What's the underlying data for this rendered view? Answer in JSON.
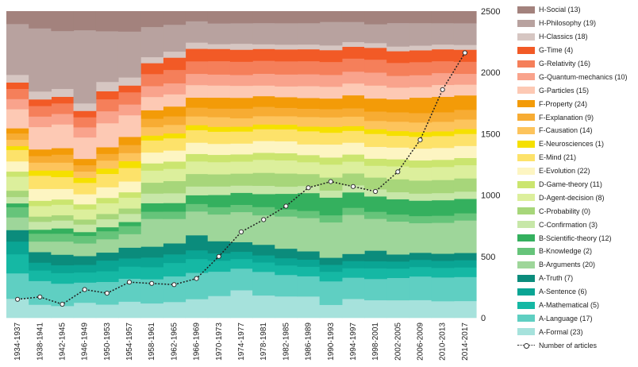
{
  "chart_data": {
    "type": "area",
    "stacked": true,
    "stacking": "proportional (stacked bands fill to the 2500 line)",
    "x": [
      "1934-1937",
      "1938-1941",
      "1942-1945",
      "1946-1949",
      "1950-1953",
      "1954-1957",
      "1958-1961",
      "1962-1965",
      "1966-1969",
      "1970-1973",
      "1974-1977",
      "1978-1981",
      "1982-1985",
      "1986-1989",
      "1990-1993",
      "1994-1997",
      "1998-2001",
      "2002-2005",
      "2006-2009",
      "2010-2013",
      "2014-2017"
    ],
    "y_axis_position": "right",
    "ylim": [
      0,
      2500
    ],
    "yticks": [
      0,
      500,
      1000,
      1500,
      2000,
      2500
    ],
    "grid": false,
    "legend_position": "right",
    "series": [
      {
        "name": "A-Formal (23)",
        "color": "#a6e2dc",
        "values": [
          150,
          100,
          90,
          120,
          100,
          120,
          120,
          130,
          150,
          180,
          230,
          190,
          180,
          180,
          110,
          160,
          150,
          150,
          150,
          140,
          140
        ]
      },
      {
        "name": "A-Language (17)",
        "color": "#5fcfc2",
        "values": [
          200,
          180,
          170,
          160,
          170,
          170,
          200,
          210,
          210,
          200,
          180,
          200,
          180,
          170,
          200,
          180,
          180,
          190,
          200,
          200,
          200
        ]
      },
      {
        "name": "A-Mathematical (5)",
        "color": "#15b8a4",
        "values": [
          150,
          80,
          80,
          80,
          80,
          90,
          100,
          110,
          110,
          90,
          80,
          80,
          80,
          80,
          80,
          80,
          90,
          80,
          80,
          80,
          80
        ]
      },
      {
        "name": "A-Sentence (6)",
        "color": "#0aa594",
        "values": [
          100,
          60,
          60,
          60,
          80,
          60,
          80,
          70,
          70,
          60,
          60,
          60,
          60,
          60,
          60,
          60,
          60,
          60,
          60,
          60,
          60
        ]
      },
      {
        "name": "A-Truth (7)",
        "color": "#0b8c7c",
        "values": [
          90,
          80,
          80,
          70,
          60,
          80,
          90,
          90,
          120,
          100,
          80,
          90,
          80,
          70,
          60,
          60,
          90,
          60,
          60,
          60,
          60
        ]
      },
      {
        "name": "B-Arguments (20)",
        "color": "#9ed69a",
        "values": [
          100,
          80,
          100,
          100,
          100,
          100,
          230,
          200,
          190,
          220,
          250,
          250,
          270,
          280,
          300,
          330,
          270,
          280,
          250,
          260,
          270
        ]
      },
      {
        "name": "B-Knowledge (2)",
        "color": "#66c47a",
        "values": [
          80,
          60,
          60,
          60,
          60,
          60,
          60,
          60,
          60,
          60,
          60,
          70,
          60,
          60,
          60,
          60,
          60,
          60,
          60,
          60,
          60
        ]
      },
      {
        "name": "B-Scientific-theory (12)",
        "color": "#34b05e",
        "values": [
          30,
          30,
          40,
          30,
          30,
          30,
          70,
          70,
          70,
          100,
          100,
          110,
          130,
          150,
          150,
          130,
          130,
          130,
          130,
          130,
          120
        ]
      },
      {
        "name": "C-Confirmation (3)",
        "color": "#c7e7a8",
        "values": [
          50,
          60,
          60,
          60,
          60,
          60,
          80,
          80,
          70,
          70,
          60,
          70,
          60,
          60,
          60,
          60,
          60,
          60,
          60,
          60,
          60
        ]
      },
      {
        "name": "C-Probability (0)",
        "color": "#a7d67a",
        "values": [
          50,
          40,
          40,
          40,
          40,
          40,
          90,
          100,
          100,
          100,
          100,
          110,
          110,
          100,
          110,
          100,
          100,
          110,
          110,
          110,
          110
        ]
      },
      {
        "name": "D-Agent-decision (8)",
        "color": "#dcef9c",
        "values": [
          110,
          80,
          80,
          80,
          80,
          80,
          100,
          100,
          100,
          100,
          100,
          110,
          110,
          100,
          110,
          100,
          100,
          110,
          110,
          110,
          110
        ]
      },
      {
        "name": "D-Game-theory (11)",
        "color": "#cbe56f",
        "values": [
          40,
          40,
          40,
          40,
          40,
          40,
          60,
          60,
          60,
          60,
          60,
          60,
          60,
          60,
          60,
          60,
          60,
          60,
          60,
          60,
          60
        ]
      },
      {
        "name": "E-Evolution (22)",
        "color": "#fdf5c2",
        "values": [
          80,
          90,
          80,
          80,
          80,
          80,
          90,
          90,
          90,
          90,
          90,
          100,
          100,
          90,
          110,
          100,
          100,
          100,
          100,
          100,
          100
        ]
      },
      {
        "name": "E-Mind (21)",
        "color": "#fde26a",
        "values": [
          90,
          100,
          90,
          90,
          100,
          100,
          100,
          100,
          100,
          100,
          100,
          100,
          100,
          110,
          100,
          100,
          110,
          100,
          100,
          100,
          100
        ]
      },
      {
        "name": "E-Neurosciences (1)",
        "color": "#f5e000",
        "values": [
          30,
          40,
          50,
          40,
          40,
          50,
          40,
          40,
          40,
          40,
          40,
          40,
          40,
          40,
          50,
          40,
          40,
          40,
          40,
          40,
          40
        ]
      },
      {
        "name": "F-Causation (14)",
        "color": "#fdc45c",
        "values": [
          50,
          60,
          60,
          50,
          60,
          60,
          70,
          70,
          70,
          80,
          70,
          70,
          70,
          80,
          80,
          80,
          70,
          80,
          80,
          80,
          80
        ]
      },
      {
        "name": "F-Explanation (9)",
        "color": "#f7ac33",
        "values": [
          50,
          50,
          60,
          50,
          50,
          60,
          70,
          70,
          70,
          70,
          80,
          80,
          70,
          70,
          70,
          70,
          80,
          80,
          80,
          80,
          80
        ]
      },
      {
        "name": "F-Property (24)",
        "color": "#f39b08",
        "values": [
          40,
          50,
          50,
          50,
          50,
          60,
          70,
          80,
          80,
          90,
          90,
          90,
          90,
          90,
          90,
          110,
          110,
          110,
          130,
          130,
          120
        ]
      },
      {
        "name": "G-Particles (15)",
        "color": "#fdc9b4",
        "values": [
          150,
          170,
          180,
          170,
          180,
          160,
          110,
          100,
          100,
          100,
          100,
          90,
          90,
          100,
          100,
          100,
          110,
          100,
          90,
          100,
          90
        ]
      },
      {
        "name": "G-Quantum-mechanics (10)",
        "color": "#f9a38c",
        "values": [
          80,
          80,
          80,
          80,
          90,
          80,
          90,
          90,
          90,
          90,
          90,
          100,
          100,
          100,
          100,
          100,
          110,
          100,
          100,
          100,
          90
        ]
      },
      {
        "name": "G-Relativity (16)",
        "color": "#f57f5a",
        "values": [
          80,
          80,
          80,
          80,
          90,
          90,
          100,
          110,
          100,
          110,
          110,
          110,
          110,
          110,
          110,
          110,
          110,
          110,
          110,
          100,
          100
        ]
      },
      {
        "name": "G-Time (4)",
        "color": "#f25a26",
        "values": [
          50,
          50,
          50,
          50,
          60,
          50,
          90,
          100,
          100,
          100,
          100,
          100,
          100,
          100,
          100,
          100,
          100,
          100,
          100,
          100,
          100
        ]
      },
      {
        "name": "H-Classics (18)",
        "color": "#d6c6c2",
        "values": [
          60,
          60,
          60,
          60,
          70,
          60,
          50,
          50,
          50,
          40,
          50,
          40,
          40,
          40,
          40,
          40,
          40,
          40,
          40,
          40,
          40
        ]
      },
      {
        "name": "H-Philosophy (19)",
        "color": "#b8a29f",
        "values": [
          400,
          480,
          440,
          580,
          380,
          340,
          250,
          220,
          170,
          170,
          170,
          180,
          180,
          180,
          200,
          170,
          160,
          200,
          190,
          180,
          180
        ]
      },
      {
        "name": "H-Social (13)",
        "color": "#a3827d",
        "values": [
          100,
          130,
          150,
          150,
          150,
          150,
          130,
          110,
          80,
          100,
          100,
          100,
          100,
          100,
          90,
          90,
          110,
          100,
          100,
          100,
          100
        ]
      }
    ],
    "line_series": {
      "name": "Number of articles",
      "values": [
        150,
        170,
        110,
        230,
        200,
        290,
        280,
        270,
        320,
        500,
        700,
        800,
        910,
        1060,
        1110,
        1070,
        1030,
        1190,
        1450,
        1860,
        2160
      ]
    }
  }
}
